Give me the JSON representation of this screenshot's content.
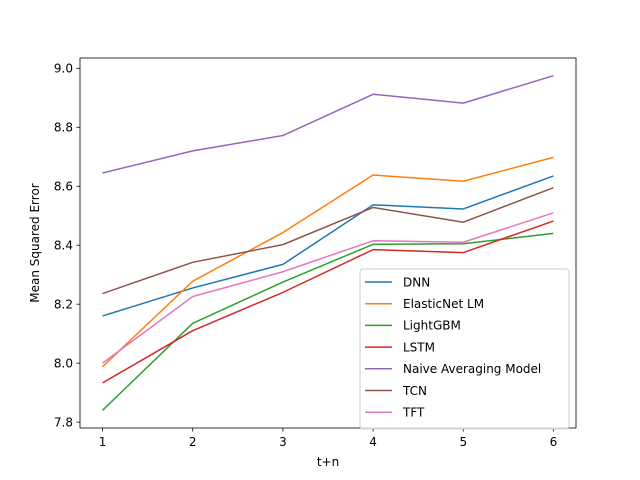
{
  "chart_data": {
    "type": "line",
    "title": "",
    "xlabel": "t+n",
    "ylabel": "Mean Squared Error",
    "x": [
      1,
      2,
      3,
      4,
      5,
      6
    ],
    "xlim": [
      0.75,
      6.25
    ],
    "ylim": [
      7.78,
      9.035
    ],
    "xticks": [
      "1",
      "2",
      "3",
      "4",
      "5",
      "6"
    ],
    "yticks": [
      7.8,
      8.0,
      8.2,
      8.4,
      8.6,
      8.8,
      9.0
    ],
    "ytick_labels": [
      "7.8",
      "8.0",
      "8.2",
      "8.4",
      "8.6",
      "8.8",
      "9.0"
    ],
    "grid": false,
    "legend_position": "lower-right",
    "series": [
      {
        "name": "DNN",
        "color": "#1f77b4",
        "values": [
          8.16,
          8.255,
          8.335,
          8.537,
          8.523,
          8.635
        ]
      },
      {
        "name": "ElasticNet LM",
        "color": "#ff7f0e",
        "values": [
          7.988,
          8.278,
          8.443,
          8.638,
          8.617,
          8.698
        ]
      },
      {
        "name": "LightGBM",
        "color": "#2ca02c",
        "values": [
          7.84,
          8.135,
          8.275,
          8.403,
          8.405,
          8.44
        ]
      },
      {
        "name": "LSTM",
        "color": "#d62728",
        "values": [
          7.933,
          8.11,
          8.24,
          8.385,
          8.375,
          8.482
        ]
      },
      {
        "name": "Naive Averaging Model",
        "color": "#9467bd",
        "values": [
          8.645,
          8.72,
          8.772,
          8.912,
          8.882,
          8.975
        ]
      },
      {
        "name": "TCN",
        "color": "#8c564b",
        "values": [
          8.236,
          8.342,
          8.402,
          8.528,
          8.478,
          8.595
        ]
      },
      {
        "name": "TFT",
        "color": "#e377c2",
        "values": [
          8.0,
          8.226,
          8.31,
          8.415,
          8.41,
          8.51
        ]
      }
    ]
  }
}
